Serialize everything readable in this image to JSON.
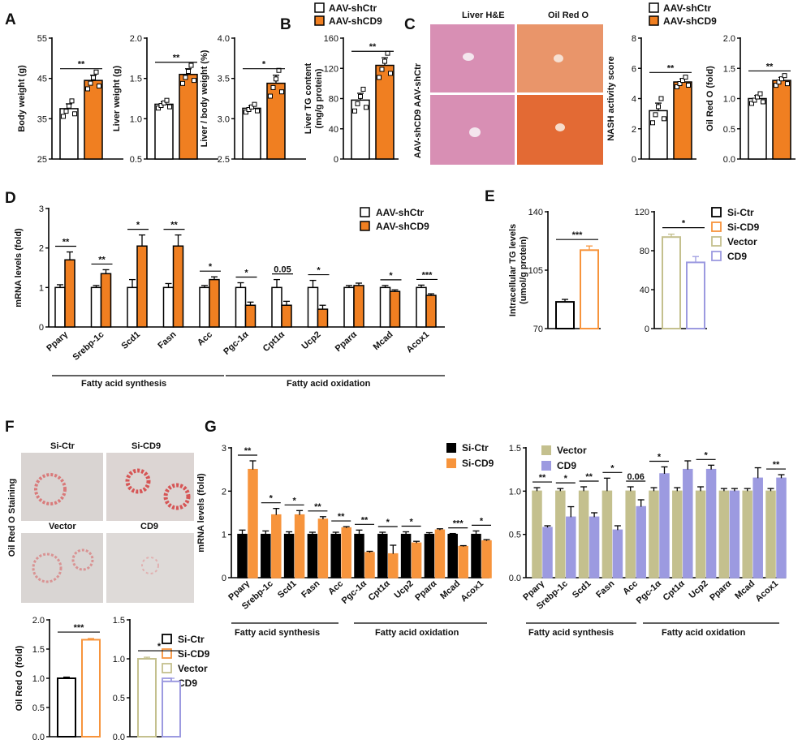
{
  "panels": {
    "A": "A",
    "B": "B",
    "C": "C",
    "D": "D",
    "E": "E",
    "F": "F",
    "G": "G"
  },
  "colors": {
    "shCtr": "#ffffff",
    "shCD9": "#f07f21",
    "siCtr": "#000000",
    "siCD9": "#f7943c",
    "vector": "#c4c08e",
    "cd9": "#9c9ae0"
  },
  "legends": {
    "aav": [
      "AAV-shCtr",
      "AAV-shCD9"
    ],
    "si": [
      "Si-Ctr",
      "Si-CD9"
    ],
    "four": [
      "Si-Ctr",
      "Si-CD9",
      "Vector",
      "CD9"
    ],
    "vec": [
      "Vector",
      "CD9"
    ]
  },
  "images": {
    "C": {
      "col_titles": [
        "Liver H&E",
        "Oil Red O"
      ],
      "row_labels": [
        "AAV-shCtr",
        "AAV-shCD9"
      ]
    },
    "F": {
      "titles": [
        "Si-Ctr",
        "Si-CD9",
        "Vector",
        "CD9"
      ],
      "side_label": "Oil Red O Staining"
    }
  },
  "group_labels": {
    "synthesis": "Fatty acid synthesis",
    "oxidation": "Fatty acid oxidation"
  },
  "chart_data": [
    {
      "id": "A1",
      "type": "bar",
      "ylabel": "Body weight (g)",
      "ylim": [
        25,
        55
      ],
      "ticks": [
        "25",
        "35",
        "45",
        "55"
      ],
      "categories": [
        "AAV-shCtr",
        "AAV-shCD9"
      ],
      "values": [
        37.5,
        44.5
      ],
      "errors": [
        1.2,
        1.3
      ],
      "sig": [
        "**"
      ]
    },
    {
      "id": "A2",
      "type": "bar",
      "ylabel": "Liver weight (g)",
      "ylim": [
        0.5,
        2.0
      ],
      "ticks": [
        "0.5",
        "1.0",
        "1.5",
        "2.0"
      ],
      "categories": [
        "AAV-shCtr",
        "AAV-shCD9"
      ],
      "values": [
        1.18,
        1.55
      ],
      "errors": [
        0.03,
        0.07
      ],
      "sig": [
        "**"
      ]
    },
    {
      "id": "A3",
      "type": "bar",
      "ylabel": "Liver / body weight (%)",
      "ylim": [
        2.5,
        4.0
      ],
      "ticks": [
        "2.5",
        "3.0",
        "3.5",
        "4.0"
      ],
      "categories": [
        "AAV-shCtr",
        "AAV-shCD9"
      ],
      "values": [
        3.13,
        3.44
      ],
      "errors": [
        0.03,
        0.1
      ],
      "sig": [
        "*"
      ]
    },
    {
      "id": "B",
      "type": "bar",
      "ylabel": "Liver TG content",
      "ylabel2": "(mg/g protein)",
      "ylim": [
        0,
        160
      ],
      "ticks": [
        "0",
        "40",
        "80",
        "120",
        "160"
      ],
      "categories": [
        "AAV-shCtr",
        "AAV-shCD9"
      ],
      "values": [
        78,
        124
      ],
      "errors": [
        9,
        10
      ],
      "sig": [
        "**"
      ]
    },
    {
      "id": "C1",
      "type": "bar",
      "ylabel": "NASH activity score",
      "ylim": [
        0,
        8
      ],
      "ticks": [
        "0",
        "2",
        "4",
        "6",
        "8"
      ],
      "categories": [
        "AAV-shCtr",
        "AAV-shCD9"
      ],
      "values": [
        3.2,
        5.1
      ],
      "errors": [
        0.5,
        0.2
      ],
      "sig": [
        "**"
      ]
    },
    {
      "id": "C2",
      "type": "bar",
      "ylabel": "Oil Red O (fold)",
      "ylim": [
        0,
        2.0
      ],
      "ticks": [
        "0.0",
        "0.5",
        "1.0",
        "1.5",
        "2.0"
      ],
      "categories": [
        "AAV-shCtr",
        "AAV-shCD9"
      ],
      "values": [
        1.0,
        1.3
      ],
      "errors": [
        0.05,
        0.05
      ],
      "sig": [
        "**"
      ]
    },
    {
      "id": "D",
      "type": "bar",
      "ylabel": "mRNA levels (fold)",
      "ylim": [
        0,
        3
      ],
      "ticks": [
        "0",
        "1",
        "2",
        "3"
      ],
      "categories": [
        "Pparγ",
        "Srebp-1c",
        "Scd1",
        "Fasn",
        "Acc",
        "Pgc-1α",
        "Cpt1α",
        "Ucp2",
        "Pparα",
        "Mcad",
        "Acox1"
      ],
      "series": [
        {
          "name": "AAV-shCtr",
          "values": [
            1.0,
            1.0,
            1.0,
            1.0,
            1.0,
            1.0,
            1.0,
            1.0,
            1.0,
            1.0,
            1.0
          ]
        },
        {
          "name": "AAV-shCD9",
          "values": [
            1.7,
            1.35,
            2.05,
            2.05,
            1.2,
            0.55,
            0.55,
            0.45,
            1.05,
            0.9,
            0.8
          ]
        }
      ],
      "errors": [
        [
          0.07,
          0.05,
          0.2,
          0.1,
          0.05,
          0.12,
          0.2,
          0.18,
          0.05,
          0.05,
          0.06
        ],
        [
          0.2,
          0.1,
          0.28,
          0.28,
          0.07,
          0.08,
          0.1,
          0.1,
          0.06,
          0.04,
          0.04
        ]
      ],
      "sig": [
        "**",
        "**",
        "*",
        "**",
        "*",
        "*",
        "0.05",
        "*",
        "",
        "*",
        "***"
      ]
    },
    {
      "id": "E1",
      "type": "bar",
      "ylabel": "Intracellular TG levels",
      "ylabel2": "(umol/g protein)",
      "ylim": [
        70,
        140
      ],
      "ticks": [
        "70",
        "105",
        "140"
      ],
      "categories": [
        "Si-Ctr",
        "Si-CD9"
      ],
      "values": [
        86,
        117
      ],
      "errors": [
        1.5,
        2.5
      ],
      "sig": [
        "***"
      ]
    },
    {
      "id": "E2",
      "type": "bar",
      "ylabel": "",
      "ylim": [
        0,
        120
      ],
      "ticks": [
        "0",
        "40",
        "80",
        "120"
      ],
      "categories": [
        "Vector",
        "CD9"
      ],
      "values": [
        94,
        68
      ],
      "errors": [
        3,
        6
      ],
      "sig": [
        "*"
      ]
    },
    {
      "id": "F1",
      "type": "bar",
      "ylabel": "Oil Red O (fold)",
      "ylim": [
        0,
        2.0
      ],
      "ticks": [
        "0.0",
        "0.5",
        "1.0",
        "1.5",
        "2.0"
      ],
      "categories": [
        "Si-Ctr",
        "Si-CD9"
      ],
      "values": [
        1.0,
        1.66
      ],
      "errors": [
        0.02,
        0.02
      ],
      "sig": [
        "***"
      ]
    },
    {
      "id": "F2",
      "type": "bar",
      "ylabel": "",
      "ylim": [
        0,
        1.5
      ],
      "ticks": [
        "0.0",
        "0.5",
        "1.0",
        "1.5"
      ],
      "categories": [
        "Vector",
        "CD9"
      ],
      "values": [
        1.0,
        0.71
      ],
      "errors": [
        0.02,
        0.04
      ],
      "sig": [
        "*"
      ]
    },
    {
      "id": "G1",
      "type": "bar",
      "ylabel": "mRNA levels (fold)",
      "ylim": [
        0,
        3
      ],
      "ticks": [
        "0",
        "1",
        "2",
        "3"
      ],
      "categories": [
        "Pparγ",
        "Srebp-1c",
        "Scd1",
        "Fasn",
        "Acc",
        "Pgc-1α",
        "Cpt1α",
        "Ucp2",
        "Pparα",
        "Mcad",
        "Acox1"
      ],
      "series": [
        {
          "name": "Si-Ctr",
          "values": [
            1.0,
            1.0,
            1.0,
            1.0,
            1.0,
            1.0,
            1.0,
            1.0,
            1.0,
            1.0,
            1.0
          ]
        },
        {
          "name": "Si-CD9",
          "values": [
            2.5,
            1.45,
            1.45,
            1.35,
            1.15,
            0.58,
            0.55,
            0.8,
            1.1,
            0.72,
            0.85
          ]
        }
      ],
      "errors": [
        [
          0.1,
          0.08,
          0.06,
          0.05,
          0.05,
          0.1,
          0.05,
          0.06,
          0.04,
          0.02,
          0.08
        ],
        [
          0.2,
          0.15,
          0.1,
          0.06,
          0.03,
          0.03,
          0.2,
          0.04,
          0.03,
          0.02,
          0.03
        ]
      ],
      "sig": [
        "**",
        "*",
        "*",
        "**",
        "**",
        "**",
        "*",
        "*",
        "",
        "***",
        "*"
      ]
    },
    {
      "id": "G2",
      "type": "bar",
      "ylabel": "",
      "ylim": [
        0,
        1.5
      ],
      "ticks": [
        "0.0",
        "0.5",
        "1.0",
        "1.5"
      ],
      "categories": [
        "Pparγ",
        "Srebp-1c",
        "Scd1",
        "Fasn",
        "Acc",
        "Pgc-1α",
        "Cpt1α",
        "Ucp2",
        "Pparα",
        "Mcad",
        "Acox1"
      ],
      "series": [
        {
          "name": "Vector",
          "values": [
            1.0,
            1.0,
            1.0,
            1.0,
            1.0,
            1.0,
            1.0,
            1.0,
            1.0,
            1.0,
            1.0
          ]
        },
        {
          "name": "CD9",
          "values": [
            0.58,
            0.7,
            0.7,
            0.55,
            0.82,
            1.2,
            1.25,
            1.25,
            1.0,
            1.15,
            1.15
          ]
        }
      ],
      "errors": [
        [
          0.04,
          0.03,
          0.05,
          0.15,
          0.05,
          0.04,
          0.04,
          0.05,
          0.03,
          0.03,
          0.03
        ],
        [
          0.02,
          0.12,
          0.05,
          0.05,
          0.08,
          0.08,
          0.1,
          0.05,
          0.03,
          0.12,
          0.04
        ]
      ],
      "sig": [
        "**",
        "*",
        "**",
        "*",
        "0.06",
        "*",
        "",
        "*",
        "",
        "",
        "**"
      ]
    }
  ]
}
